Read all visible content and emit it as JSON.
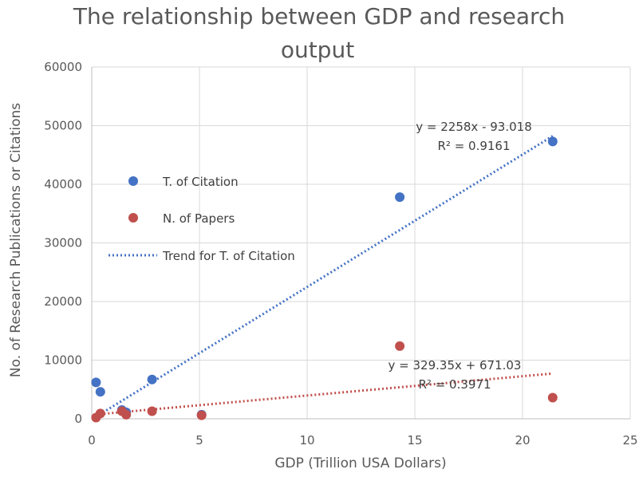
{
  "chart_data": {
    "type": "scatter",
    "title_line1": "The relationship between GDP and research",
    "title_line2": "output",
    "xlabel": "GDP (Trillion USA Dollars)",
    "ylabel": "No. of Research Publications  or Citations",
    "xlim": [
      0,
      25
    ],
    "ylim": [
      0,
      60000
    ],
    "x_ticks": [
      "0",
      "5",
      "10",
      "15",
      "20",
      "25"
    ],
    "y_ticks": [
      "0",
      "10000",
      "20000",
      "30000",
      "40000",
      "50000",
      "60000"
    ],
    "grid": "vertical and horizontal major gridlines",
    "legend_position": "left, inside plot",
    "series": [
      {
        "name": "T. of Citation",
        "color": "#4472C4",
        "points": [
          [
            0.2,
            6200
          ],
          [
            0.4,
            4600
          ],
          [
            1.4,
            1500
          ],
          [
            1.6,
            1100
          ],
          [
            2.8,
            6700
          ],
          [
            5.1,
            700
          ],
          [
            14.3,
            37800
          ],
          [
            21.4,
            47300
          ]
        ]
      },
      {
        "name": "N. of Papers",
        "color": "#C0504D",
        "points": [
          [
            0.2,
            200
          ],
          [
            0.4,
            900
          ],
          [
            1.4,
            1300
          ],
          [
            1.6,
            700
          ],
          [
            2.8,
            1300
          ],
          [
            5.1,
            600
          ],
          [
            14.3,
            12400
          ],
          [
            21.4,
            3600
          ]
        ]
      }
    ],
    "trendlines": [
      {
        "name": "Trend for T. of Citation",
        "color": "#4472C4",
        "slope": 2258,
        "intercept": -93.018,
        "x_range": [
          0.2,
          21.4
        ],
        "equation": "y = 2258x - 93.018",
        "r2": "R² = 0.9161"
      },
      {
        "color": "#C0504D",
        "slope": 329.35,
        "intercept": 671.03,
        "x_range": [
          0.2,
          21.4
        ],
        "equation": "y = 329.35x + 671.03",
        "r2": "R² = 0.3971"
      }
    ]
  }
}
